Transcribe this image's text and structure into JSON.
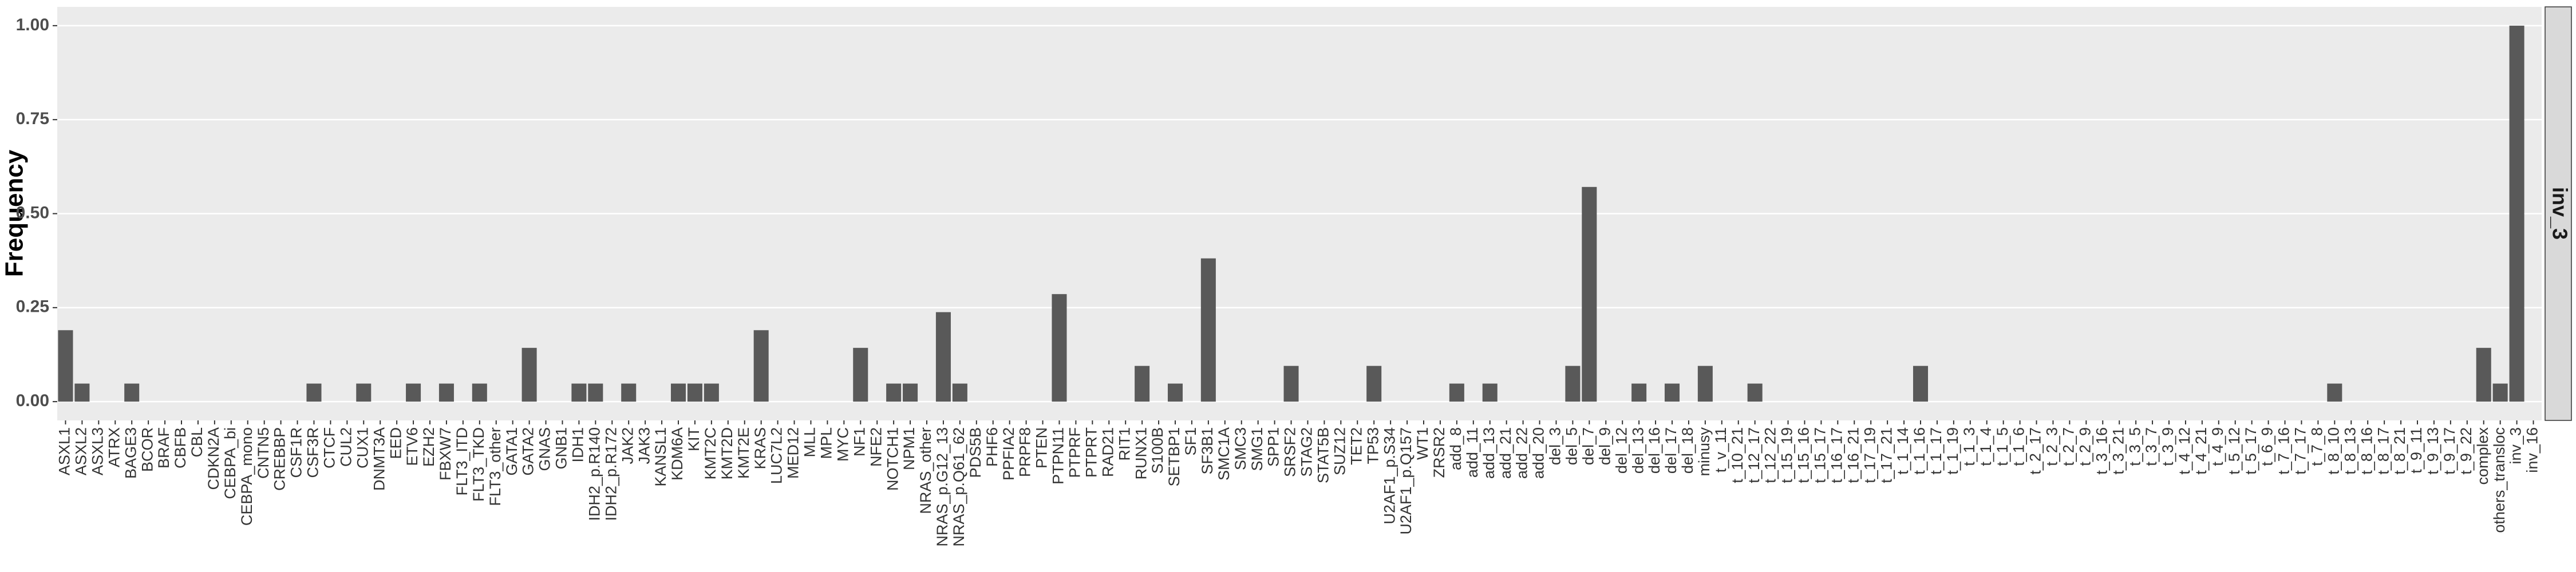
{
  "chart_data": {
    "type": "bar",
    "ylabel": "Frequency",
    "facet_label": "inv_3",
    "categories": [
      "ASXL1",
      "ASXL2",
      "ASXL3",
      "ATRX",
      "BAGE3",
      "BCOR",
      "BRAF",
      "CBFB",
      "CBL",
      "CDKN2A",
      "CEBPA_bi",
      "CEBPA_mono",
      "CNTN5",
      "CREBBP",
      "CSF1R",
      "CSF3R",
      "CTCF",
      "CUL2",
      "CUX1",
      "DNMT3A",
      "EED",
      "ETV6",
      "EZH2",
      "FBXW7",
      "FLT3_ITD",
      "FLT3_TKD",
      "FLT3_other",
      "GATA1",
      "GATA2",
      "GNAS",
      "GNB1",
      "IDH1",
      "IDH2_p.R140",
      "IDH2_p.R172",
      "JAK2",
      "JAK3",
      "KANSL1",
      "KDM6A",
      "KIT",
      "KMT2C",
      "KMT2D",
      "KMT2E",
      "KRAS",
      "LUC7L2",
      "MED12",
      "MLL",
      "MPL",
      "MYC",
      "NF1",
      "NFE2",
      "NOTCH1",
      "NPM1",
      "NRAS_other",
      "NRAS_p.G12_13",
      "NRAS_p.Q61_62",
      "PDS5B",
      "PHF6",
      "PPFIA2",
      "PRPF8",
      "PTEN",
      "PTPN11",
      "PTPRF",
      "PTPRT",
      "RAD21",
      "RIT1",
      "RUNX1",
      "S100B",
      "SETBP1",
      "SF1",
      "SF3B1",
      "SMC1A",
      "SMC3",
      "SMG1",
      "SPP1",
      "SRSF2",
      "STAG2",
      "STAT5B",
      "SUZ12",
      "TET2",
      "TP53",
      "U2AF1_p.S34",
      "U2AF1_p.Q157",
      "WT1",
      "ZRSR2",
      "add_8",
      "add_11",
      "add_13",
      "add_21",
      "add_22",
      "add_20",
      "del_3",
      "del_5",
      "del_7",
      "del_9",
      "del_12",
      "del_13",
      "del_16",
      "del_17",
      "del_18",
      "minusy",
      "t_v_11",
      "t_10_21",
      "t_12_17",
      "t_12_22",
      "t_15_19",
      "t_15_16",
      "t_15_17",
      "t_16_17",
      "t_16_21",
      "t_17_19",
      "t_17_21",
      "t_1_14",
      "t_1_16",
      "t_1_17",
      "t_1_19",
      "t_1_3",
      "t_1_4",
      "t_1_5",
      "t_1_6",
      "t_2_17",
      "t_2_3",
      "t_2_7",
      "t_2_9",
      "t_3_16",
      "t_3_21",
      "t_3_5",
      "t_3_7",
      "t_3_9",
      "t_4_12",
      "t_4_21",
      "t_4_9",
      "t_5_12",
      "t_5_17",
      "t_6_9",
      "t_7_16",
      "t_7_17",
      "t_7_8",
      "t_8_10",
      "t_8_13",
      "t_8_16",
      "t_8_17",
      "t_8_21",
      "t_9_11",
      "t_9_13",
      "t_9_17",
      "t_9_22",
      "complex",
      "others_transloc",
      "inv_3",
      "inv_16"
    ],
    "values": [
      0.19,
      0.048,
      0,
      0,
      0.048,
      0,
      0,
      0,
      0,
      0,
      0,
      0,
      0,
      0,
      0,
      0.048,
      0,
      0,
      0.048,
      0,
      0,
      0.048,
      0,
      0.048,
      0,
      0.048,
      0,
      0,
      0.143,
      0,
      0,
      0.048,
      0.048,
      0,
      0.048,
      0,
      0,
      0.048,
      0.048,
      0.048,
      0,
      0,
      0.19,
      0,
      0,
      0,
      0,
      0,
      0.143,
      0,
      0.048,
      0.048,
      0,
      0.238,
      0.048,
      0,
      0,
      0,
      0,
      0,
      0.286,
      0,
      0,
      0,
      0,
      0.095,
      0,
      0.048,
      0,
      0.381,
      0,
      0,
      0,
      0,
      0.095,
      0,
      0,
      0,
      0,
      0.095,
      0,
      0,
      0,
      0,
      0.048,
      0,
      0.048,
      0,
      0,
      0,
      0,
      0.095,
      0.571,
      0,
      0,
      0.048,
      0,
      0.048,
      0,
      0.095,
      0,
      0,
      0.048,
      0,
      0,
      0,
      0,
      0,
      0,
      0,
      0,
      0,
      0.095,
      0,
      0,
      0,
      0,
      0,
      0,
      0,
      0,
      0,
      0,
      0,
      0,
      0,
      0,
      0,
      0,
      0,
      0,
      0,
      0,
      0,
      0,
      0,
      0,
      0.048,
      0,
      0,
      0,
      0,
      0,
      0,
      0,
      0,
      0.143,
      0.048,
      1,
      0
    ],
    "color": "#595959",
    "ylim": [
      -0.05,
      1.05
    ],
    "yticks": [
      {
        "value": 0,
        "label": "0.00"
      },
      {
        "value": 0.25,
        "label": "0.25"
      },
      {
        "value": 0.5,
        "label": "0.50"
      },
      {
        "value": 0.75,
        "label": "0.75"
      },
      {
        "value": 1,
        "label": "1.00"
      }
    ],
    "grid": true
  }
}
